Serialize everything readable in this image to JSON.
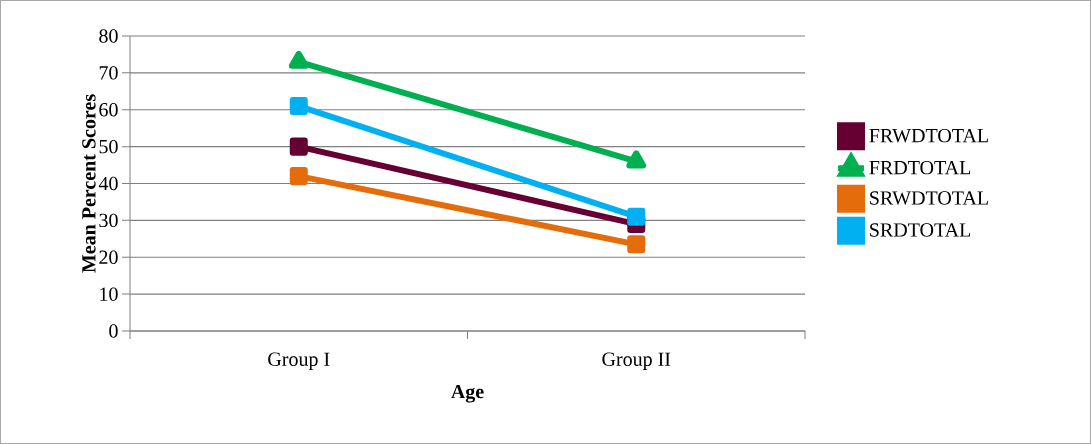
{
  "chart_data": {
    "type": "line",
    "xlabel": "Age",
    "ylabel": "Mean Percent Scores",
    "categories": [
      "Group I",
      "Group II"
    ],
    "series": [
      {
        "name": "FRWDTOTAL",
        "color": "#660033",
        "values": [
          50,
          29
        ],
        "marker": "square"
      },
      {
        "name": "FRDTOTAL",
        "color": "#00b050",
        "values": [
          73,
          46
        ],
        "marker": "triangle"
      },
      {
        "name": "SRWDTOTAL",
        "color": "#e46c0a",
        "values": [
          42,
          23.5
        ],
        "marker": "square"
      },
      {
        "name": "SRDTOTAL",
        "color": "#00b0f0",
        "values": [
          61,
          31
        ],
        "marker": "square"
      }
    ],
    "ylim": [
      0,
      80
    ],
    "yticks": [
      0,
      10,
      20,
      30,
      40,
      50,
      60,
      70,
      80
    ],
    "grid": "y",
    "legend": "right",
    "line_style": "solid"
  }
}
